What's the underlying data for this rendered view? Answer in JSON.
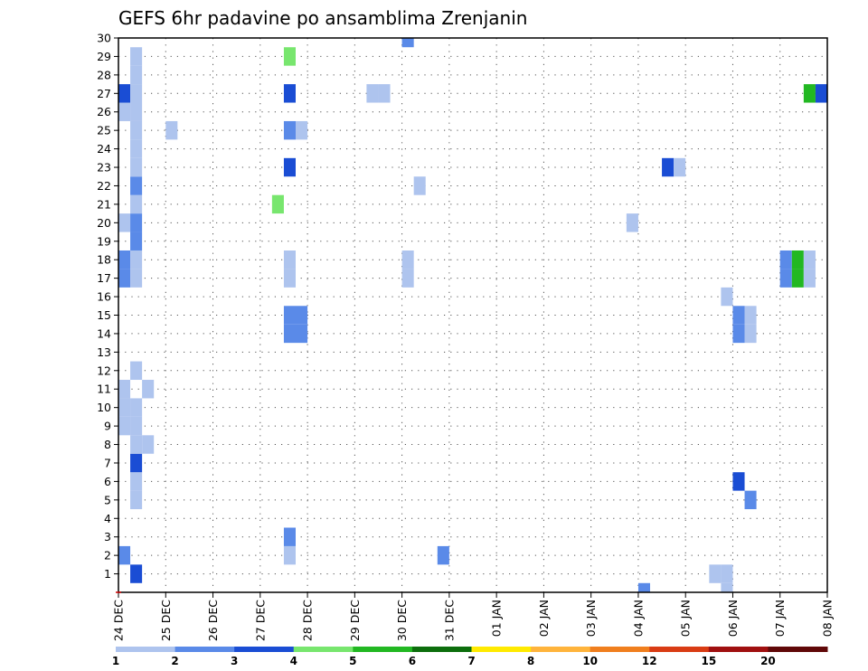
{
  "chart_data": {
    "type": "heatmap",
    "title": "GEFS 6hr padavine po ansamblima Zrenjanin",
    "xlabel": "",
    "ylabel": "",
    "x_tick_labels": [
      "24 DEC",
      "25 DEC",
      "26 DEC",
      "27 DEC",
      "28 DEC",
      "29 DEC",
      "30 DEC",
      "31 DEC",
      "01 JAN",
      "02 JAN",
      "03 JAN",
      "04 JAN",
      "05 JAN",
      "06 JAN",
      "07 JAN",
      "08 JAN"
    ],
    "y_tick_labels": [
      "1",
      "2",
      "3",
      "4",
      "5",
      "6",
      "7",
      "8",
      "9",
      "10",
      "11",
      "12",
      "13",
      "14",
      "15",
      "16",
      "17",
      "18",
      "19",
      "20",
      "21",
      "22",
      "23",
      "24",
      "25",
      "26",
      "27",
      "28",
      "29",
      "30"
    ],
    "x_units": "6-hour steps from 24 DEC 00Z",
    "y_units": "ensemble member",
    "xlim": [
      0,
      60
    ],
    "ylim": [
      0,
      30
    ],
    "grid": true,
    "colorbar": {
      "labels": [
        "1",
        "2",
        "3",
        "4",
        "5",
        "6",
        "7",
        "8",
        "10",
        "12",
        "15",
        "20"
      ],
      "colors": [
        "#aec4ee",
        "#5a8ae8",
        "#1a4dd4",
        "#78e66e",
        "#22b822",
        "#0d6e0d",
        "#ffea00",
        "#ffb43c",
        "#f07f1e",
        "#d93c14",
        "#a01010",
        "#600808"
      ]
    },
    "cells": [
      {
        "step": 1,
        "member": 1,
        "value": 3.5
      },
      {
        "step": 0,
        "member": 2,
        "value": 2.5
      },
      {
        "step": 1,
        "member": 5,
        "value": 1.5
      },
      {
        "step": 1,
        "member": 6,
        "value": 1.5
      },
      {
        "step": 1,
        "member": 7,
        "value": 3.5
      },
      {
        "step": 1,
        "member": 8,
        "value": 1.5
      },
      {
        "step": 2,
        "member": 8,
        "value": 1.5
      },
      {
        "step": 0,
        "member": 9,
        "value": 1.5
      },
      {
        "step": 1,
        "member": 9,
        "value": 1.5
      },
      {
        "step": 0,
        "member": 10,
        "value": 1.5
      },
      {
        "step": 1,
        "member": 10,
        "value": 1.5
      },
      {
        "step": 0,
        "member": 11,
        "value": 1.5
      },
      {
        "step": 2,
        "member": 11,
        "value": 1.5
      },
      {
        "step": 1,
        "member": 12,
        "value": 1.5
      },
      {
        "step": 0,
        "member": 17,
        "value": 2.5
      },
      {
        "step": 1,
        "member": 17,
        "value": 1.5
      },
      {
        "step": 0,
        "member": 18,
        "value": 2.5
      },
      {
        "step": 1,
        "member": 18,
        "value": 1.5
      },
      {
        "step": 1,
        "member": 19,
        "value": 2.5
      },
      {
        "step": 0,
        "member": 20,
        "value": 1.5
      },
      {
        "step": 1,
        "member": 20,
        "value": 2.5
      },
      {
        "step": 1,
        "member": 21,
        "value": 1.5
      },
      {
        "step": 1,
        "member": 22,
        "value": 2.5
      },
      {
        "step": 1,
        "member": 23,
        "value": 1.5
      },
      {
        "step": 1,
        "member": 24,
        "value": 1.5
      },
      {
        "step": 1,
        "member": 25,
        "value": 1.5
      },
      {
        "step": 0,
        "member": 26,
        "value": 1.5
      },
      {
        "step": 1,
        "member": 26,
        "value": 1.5
      },
      {
        "step": 0,
        "member": 27,
        "value": 3.5
      },
      {
        "step": 1,
        "member": 27,
        "value": 1.5
      },
      {
        "step": 1,
        "member": 28,
        "value": 1.5
      },
      {
        "step": 1,
        "member": 29,
        "value": 1.5
      },
      {
        "step": 4,
        "member": 25,
        "value": 1.5
      },
      {
        "step": 13,
        "member": 21,
        "value": 4.5
      },
      {
        "step": 14,
        "member": 2,
        "value": 1.5
      },
      {
        "step": 14,
        "member": 3,
        "value": 2.5
      },
      {
        "step": 14,
        "member": 14,
        "value": 2.5
      },
      {
        "step": 15,
        "member": 14,
        "value": 2.5
      },
      {
        "step": 14,
        "member": 15,
        "value": 2.5
      },
      {
        "step": 15,
        "member": 15,
        "value": 2.5
      },
      {
        "step": 14,
        "member": 17,
        "value": 1.5
      },
      {
        "step": 14,
        "member": 18,
        "value": 1.5
      },
      {
        "step": 14,
        "member": 23,
        "value": 3.5
      },
      {
        "step": 14,
        "member": 25,
        "value": 2.5
      },
      {
        "step": 15,
        "member": 25,
        "value": 1.5
      },
      {
        "step": 14,
        "member": 27,
        "value": 3.5
      },
      {
        "step": 14,
        "member": 29,
        "value": 4.5
      },
      {
        "step": 21,
        "member": 27,
        "value": 1.5
      },
      {
        "step": 22,
        "member": 27,
        "value": 1.5
      },
      {
        "step": 24,
        "member": 17,
        "value": 1.5
      },
      {
        "step": 24,
        "member": 18,
        "value": 1.5
      },
      {
        "step": 24,
        "member": 30,
        "value": 2.5
      },
      {
        "step": 25,
        "member": 22,
        "value": 1.5
      },
      {
        "step": 27,
        "member": 2,
        "value": 2.5
      },
      {
        "step": 43,
        "member": 20,
        "value": 1.5
      },
      {
        "step": 44,
        "member": 0,
        "value": 2.5
      },
      {
        "step": 46,
        "member": 23,
        "value": 3.5
      },
      {
        "step": 47,
        "member": 23,
        "value": 1.5
      },
      {
        "step": 50,
        "member": 1,
        "value": 1.5
      },
      {
        "step": 51,
        "member": 1,
        "value": 1.5
      },
      {
        "step": 51,
        "member": 0,
        "value": 1.5
      },
      {
        "step": 51,
        "member": 16,
        "value": 1.5
      },
      {
        "step": 52,
        "member": 6,
        "value": 3.5
      },
      {
        "step": 53,
        "member": 5,
        "value": 2.5
      },
      {
        "step": 52,
        "member": 15,
        "value": 2.5
      },
      {
        "step": 52,
        "member": 14,
        "value": 2.5
      },
      {
        "step": 53,
        "member": 15,
        "value": 1.5
      },
      {
        "step": 53,
        "member": 14,
        "value": 1.5
      },
      {
        "step": 56,
        "member": 17,
        "value": 2.5
      },
      {
        "step": 56,
        "member": 18,
        "value": 2.5
      },
      {
        "step": 57,
        "member": 17,
        "value": 5.5
      },
      {
        "step": 57,
        "member": 18,
        "value": 5.5
      },
      {
        "step": 58,
        "member": 17,
        "value": 1.5
      },
      {
        "step": 58,
        "member": 18,
        "value": 1.5
      },
      {
        "step": 58,
        "member": 27,
        "value": 5.5
      },
      {
        "step": 59,
        "member": 27,
        "value": 3.5
      }
    ]
  }
}
